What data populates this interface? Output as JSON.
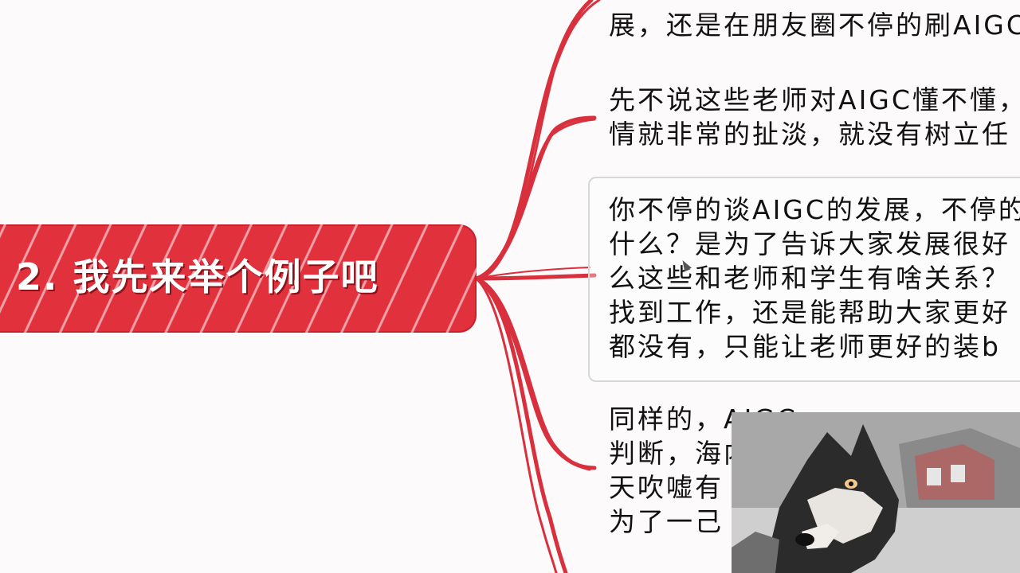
{
  "topic": {
    "title": "2. 我先来举个例子吧"
  },
  "notes": [
    {
      "lines": [
        "展，还是在朋友圈不停的刷AIGC"
      ]
    },
    {
      "lines": [
        "先不说这些老师对AIGC懂不懂，",
        "情就非常的扯淡，就没有树立任"
      ]
    },
    {
      "lines": [
        "你不停的谈AIGC的发展，不停的",
        "什么？是为了告诉大家发展很好",
        "么这些和老师和学生有啥关系？",
        "找到工作，还是能帮助大家更好",
        "都没有，只能让老师更好的装b"
      ]
    },
    {
      "lines": [
        "同样的，AIGC",
        "判断，海内",
        "天吹嘘有",
        "为了一己"
      ]
    }
  ],
  "colors": {
    "accent": "#e0313d",
    "branch": "#d8303c",
    "text": "#111111",
    "background": "#fcfafb"
  },
  "icons": {
    "webcam_subject": "husky-dog-icon"
  }
}
